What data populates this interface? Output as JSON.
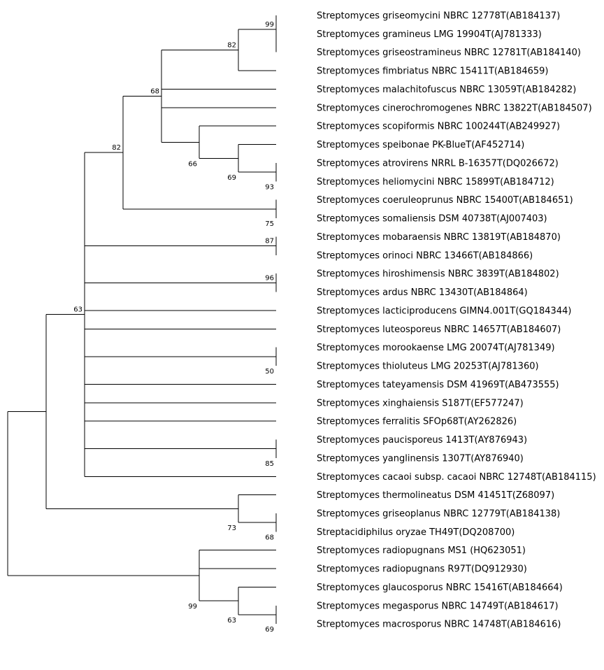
{
  "tree": {
    "taxa": [
      "Streptomyces griseomycini NBRC 12778T(AB184137)",
      "Streptomyces gramineus LMG 19904T(AJ781333)",
      "Streptomyces griseostramineus NBRC 12781T(AB184140)",
      "Streptomyces fimbriatus NBRC 15411T(AB184659)",
      "Streptomyces malachitofuscus NBRC 13059T(AB184282)",
      "Streptomyces cinerochromogenes NBRC 13822T(AB184507)",
      "Streptomyces scopiformis NBRC 100244T(AB249927)",
      "Streptomyces speibonae PK-BlueT(AF452714)",
      "Streptomyces atrovirens NRRL B-16357T(DQ026672)",
      "Streptomyces heliomycini NBRC 15899T(AB184712)",
      "Streptomyces coeruleoprunus NBRC 15400T(AB184651)",
      "Streptomyces somaliensis DSM 40738T(AJ007403)",
      "Streptomyces mobaraensis NBRC 13819T(AB184870)",
      "Streptomyces orinoci NBRC 13466T(AB184866)",
      "Streptomyces hiroshimensis NBRC 3839T(AB184802)",
      "Streptomyces ardus NBRC 13430T(AB184864)",
      "Streptomyces lacticiproducens GIMN4.001T(GQ184344)",
      "Streptomyces luteosporeus NBRC 14657T(AB184607)",
      "Streptomyces morookaense LMG 20074T(AJ781349)",
      "Streptomyces thioluteus LMG 20253T(AJ781360)",
      "Streptomyces tateyamensis DSM 41969T(AB473555)",
      "Streptomyces xinghaiensis S187T(EF577247)",
      "Streptomyces ferralitis SFOp68T(AY262826)",
      "Streptomyces paucisporeus 1413T(AY876943)",
      "Streptomyces yanglinensis 1307T(AY876940)",
      "Streptomyces cacaoi subsp. cacaoi NBRC 12748T(AB184115)",
      "Streptomyces thermolineatus DSM 41451T(Z68097)",
      "Streptomyces griseoplanus NBRC 12779T(AB184138)",
      "Streptacidiphilus oryzae TH49T(DQ208700)",
      "Streptomyces radiopugnans MS1 (HQ623051)",
      "Streptomyces radiopugnans R97T(DQ912930)",
      "Streptomyces glaucosporus NBRC 15416T(AB184664)",
      "Streptomyces megasporus NBRC 14749T(AB184617)",
      "Streptomyces macrosporus NBRC 14748T(AB184616)"
    ],
    "bootstrap": {
      "n_gram": "99",
      "n_fim": "82",
      "n_mal": "68",
      "n_spe": "66",
      "n_atr": "69",
      "n_hel": "93",
      "n_som": "75",
      "n_cla": "82",
      "n_mob": "87",
      "n_hir": "96",
      "n_thi": "50",
      "n_yan": "85",
      "n_big": "63",
      "n_gp": "68",
      "n_the": "73",
      "n_meg": "69",
      "n_gla": "63",
      "n_rad": "99"
    }
  }
}
